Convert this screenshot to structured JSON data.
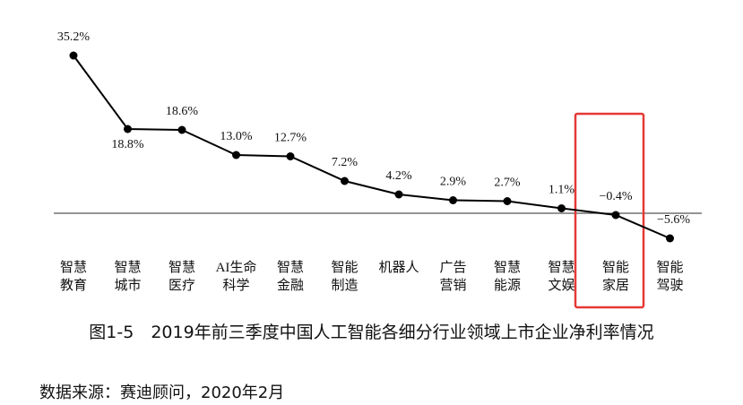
{
  "chart_data": {
    "type": "line",
    "title": "图1-5　2019年前三季度中国人工智能各细分行业领域上市企业净利率情况",
    "source": "数据来源：赛迪顾问，2020年2月",
    "categories": [
      "智慧\n教育",
      "智慧\n城市",
      "智慧\n医疗",
      "AI生命\n科学",
      "智慧\n金融",
      "智能\n制造",
      "机器人",
      "广告\n营销",
      "智慧\n能源",
      "智慧\n文娱",
      "智能\n家居",
      "智能\n驾驶"
    ],
    "values": [
      35.2,
      18.8,
      18.6,
      13.0,
      12.7,
      7.2,
      4.2,
      2.9,
      2.7,
      1.1,
      -0.4,
      -5.6
    ],
    "value_labels": [
      "35.2%",
      "18.8%",
      "18.6%",
      "13.0%",
      "12.7%",
      "7.2%",
      "4.2%",
      "2.9%",
      "2.7%",
      "1.1%",
      "−0.4%",
      "−5.6%"
    ],
    "color": "#000000",
    "ylim": [
      -8,
      40
    ],
    "highlight": {
      "index": 10,
      "color": "#e53935"
    }
  }
}
